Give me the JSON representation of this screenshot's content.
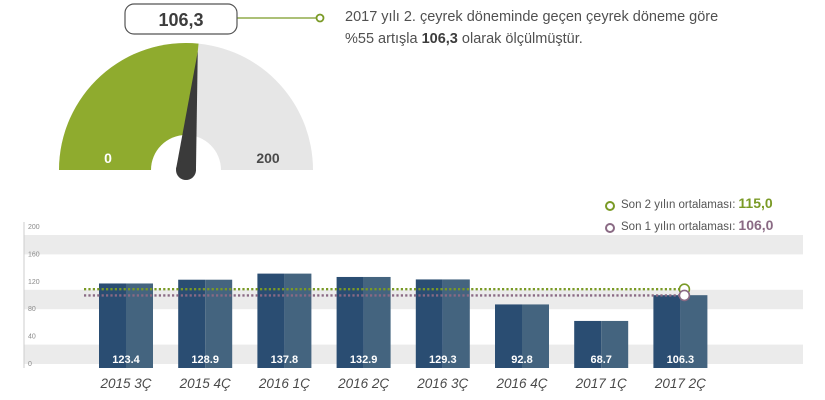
{
  "gauge": {
    "value_label": "106,3",
    "value": 106.3,
    "min_label": "0",
    "max_label": "200",
    "min": 0,
    "max": 200,
    "fill_color": "#8fab2e",
    "track_color": "#e6e6e6",
    "needle_color": "#3a3a3a"
  },
  "description": {
    "line1": "2017 yılı 2. çeyrek döneminde geçen çeyrek döneme göre",
    "line2_pre": "%55 artışla ",
    "line2_bold": "106,3",
    "line2_post": " olarak ölçülmüştür."
  },
  "legend": [
    {
      "label": "Son 2 yılın ortalaması:",
      "value": "115,0",
      "color": "#7a9a26"
    },
    {
      "label": "Son 1 yılın ortalaması:",
      "value": "106,0",
      "color": "#8a6a84"
    }
  ],
  "chart_data": {
    "type": "bar",
    "categories": [
      "2015 3Ç",
      "2015 4Ç",
      "2016 1Ç",
      "2016 2Ç",
      "2016 3Ç",
      "2016 4Ç",
      "2017 1Ç",
      "2017 2Ç"
    ],
    "values": [
      123.4,
      128.9,
      137.8,
      132.9,
      129.3,
      92.8,
      68.7,
      106.3
    ],
    "value_labels": [
      "123.4",
      "128.9",
      "137.8",
      "132.9",
      "129.3",
      "92.8",
      "68.7",
      "106.3"
    ],
    "y_ticks": [
      "0",
      "40",
      "80",
      "120",
      "160",
      "200"
    ],
    "ylim": [
      0,
      200
    ],
    "reference_lines": [
      {
        "value": 115.0,
        "color": "#7a9a26"
      },
      {
        "value": 106.0,
        "color": "#8a6a84"
      }
    ],
    "bar_color_dark": "#2a4d72",
    "bar_color_light": "#44647f",
    "band_color": "#ebebeb"
  }
}
